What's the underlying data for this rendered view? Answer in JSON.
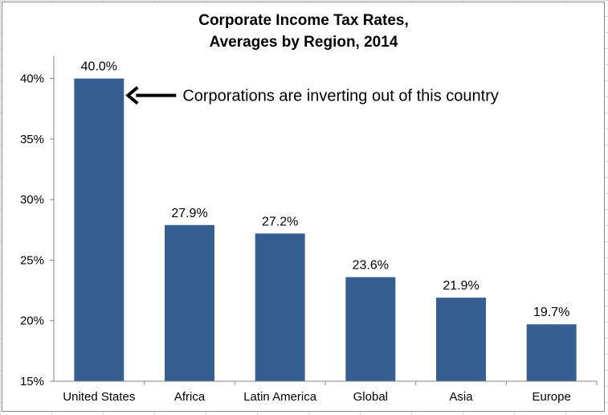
{
  "chart_data": {
    "type": "bar",
    "title_lines": [
      "Corporate Income Tax Rates,",
      "Averages by Region, 2014"
    ],
    "categories": [
      "United States",
      "Africa",
      "Latin America",
      "Global",
      "Asia",
      "Europe"
    ],
    "values": [
      40.0,
      27.9,
      27.2,
      23.6,
      21.9,
      19.7
    ],
    "data_labels": [
      "40.0%",
      "27.9%",
      "27.2%",
      "23.6%",
      "21.9%",
      "19.7%"
    ],
    "y_ticks": [
      15,
      20,
      25,
      30,
      35,
      40
    ],
    "y_tick_labels": [
      "15%",
      "20%",
      "25%",
      "30%",
      "35%",
      "40%"
    ],
    "ylim": [
      15,
      42.5
    ],
    "grid": false,
    "legend": "none",
    "bar_color": "#355f91",
    "annotation": {
      "text": "Corporations are inverting out of this country",
      "points_to": "United States"
    }
  }
}
